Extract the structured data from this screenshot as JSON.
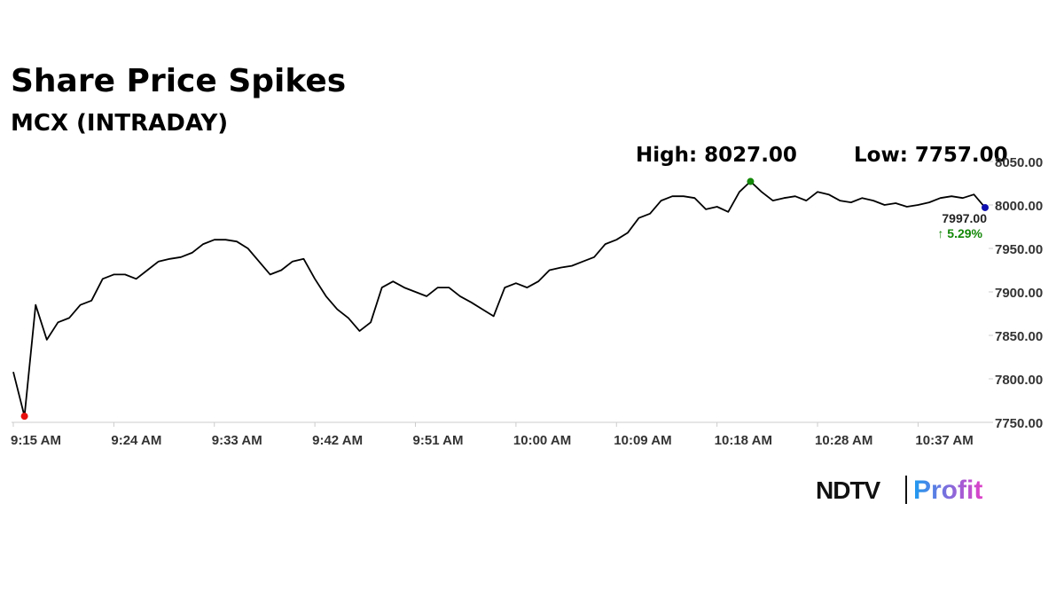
{
  "chart_data": {
    "type": "line",
    "title": "Share Price Spikes",
    "subtitle": "MCX (INTRADAY)",
    "high_label": "High: 8027.00",
    "low_label": "Low: 7757.00",
    "last_label": "7997.00",
    "change_label": "↑ 5.29%",
    "categories": [
      "9:15 AM",
      null,
      null,
      null,
      null,
      null,
      null,
      null,
      null,
      "9:24 AM",
      null,
      null,
      null,
      null,
      null,
      null,
      null,
      null,
      "9:33 AM",
      null,
      null,
      null,
      null,
      null,
      null,
      null,
      null,
      "9:42 AM",
      null,
      null,
      null,
      null,
      null,
      null,
      null,
      null,
      "9:51 AM",
      null,
      null,
      null,
      null,
      null,
      null,
      null,
      null,
      "10:00 AM",
      null,
      null,
      null,
      null,
      null,
      null,
      null,
      null,
      "10:09 AM",
      null,
      null,
      null,
      null,
      null,
      null,
      null,
      null,
      "10:18 AM",
      null,
      null,
      null,
      null,
      null,
      null,
      null,
      null,
      "10:28 AM",
      null,
      null,
      null,
      null,
      null,
      null,
      null,
      null,
      "10:37 AM",
      null,
      null,
      null,
      null,
      null,
      null
    ],
    "series": [
      {
        "name": "MCX",
        "color": "#000000",
        "values": [
          7808,
          7757,
          7885,
          7845,
          7865,
          7870,
          7885,
          7890,
          7915,
          7920,
          7920,
          7915,
          7925,
          7935,
          7938,
          7940,
          7945,
          7955,
          7960,
          7960,
          7958,
          7950,
          7935,
          7920,
          7925,
          7935,
          7938,
          7915,
          7895,
          7880,
          7870,
          7855,
          7865,
          7905,
          7912,
          7905,
          7900,
          7895,
          7905,
          7905,
          7895,
          7888,
          7880,
          7872,
          7905,
          7910,
          7905,
          7912,
          7925,
          7928,
          7930,
          7935,
          7940,
          7955,
          7960,
          7968,
          7985,
          7990,
          8005,
          8010,
          8010,
          8008,
          7995,
          7998,
          7992,
          8015,
          8027,
          8015,
          8005,
          8008,
          8010,
          8005,
          8015,
          8012,
          8005,
          8003,
          8008,
          8005,
          8000,
          8002,
          7998,
          8000,
          8003,
          8008,
          8010,
          8008,
          8012,
          7997
        ]
      }
    ],
    "markers": {
      "high": {
        "index": 66,
        "color": "#138808"
      },
      "low": {
        "index": 1,
        "color": "#e8110f"
      },
      "last": {
        "index": 87,
        "color": "#1010b0"
      }
    },
    "ylim": [
      7750,
      8050
    ],
    "yticks": [
      {
        "value": 7750,
        "label": "7750.00"
      },
      {
        "value": 7800,
        "label": "7800.00"
      },
      {
        "value": 7850,
        "label": "7850.00"
      },
      {
        "value": 7900,
        "label": "7900.00"
      },
      {
        "value": 7950,
        "label": "7950.00"
      },
      {
        "value": 8000,
        "label": "8000.00"
      },
      {
        "value": 8050,
        "label": "8050.00"
      }
    ]
  },
  "logo": {
    "brand": "NDTV",
    "product": "Profit"
  }
}
